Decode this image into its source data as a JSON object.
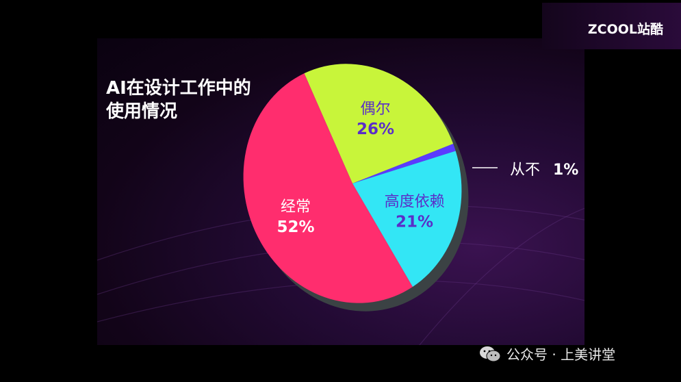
{
  "brand": {
    "logo_text": "ZCOOL站酷"
  },
  "title_lines": [
    "AI在设计工作中的",
    "使用情况"
  ],
  "chart_data": {
    "type": "pie",
    "title": "AI在设计工作中的使用情况",
    "slices": [
      {
        "label": "偶尔",
        "value_label": "26%",
        "value": 26,
        "color": "#c8f53a",
        "label_color": "#5a2ec8"
      },
      {
        "label": "从不",
        "value_label": "1%",
        "value": 1,
        "color": "#5b3bff",
        "label_color": "#ffffff"
      },
      {
        "label": "高度依赖",
        "value_label": "21%",
        "value": 21,
        "color": "#33e6f5",
        "label_color": "#5a2ec8"
      },
      {
        "label": "经常",
        "value_label": "52%",
        "value": 52,
        "color": "#ff2d6e",
        "label_color": "#ffffff"
      }
    ]
  },
  "footer": {
    "text": "公众号 · 上美讲堂"
  }
}
